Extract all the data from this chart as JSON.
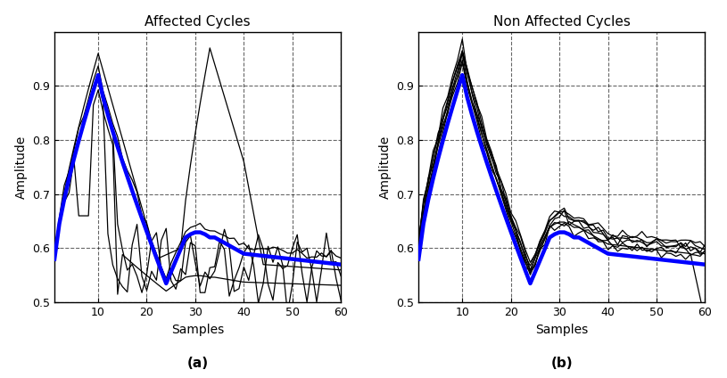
{
  "title_left": "Affected Cycles",
  "title_right": "Non Affected Cycles",
  "xlabel": "Samples",
  "ylabel": "Amplitude",
  "label_a": "(a)",
  "label_b": "(b)",
  "xlim": [
    1,
    60
  ],
  "ylim": [
    0.5,
    1.0
  ],
  "yticks": [
    0.5,
    0.6,
    0.7,
    0.8,
    0.9
  ],
  "xticks": [
    10,
    20,
    30,
    40,
    50,
    60
  ],
  "mean_color": "#0000FF",
  "mean_lw": 3.2,
  "thin_lw": 0.9,
  "thin_color": "#000000",
  "background_color": "#ffffff",
  "grid_color": "#000000",
  "grid_alpha": 0.6,
  "grid_lw": 0.8
}
